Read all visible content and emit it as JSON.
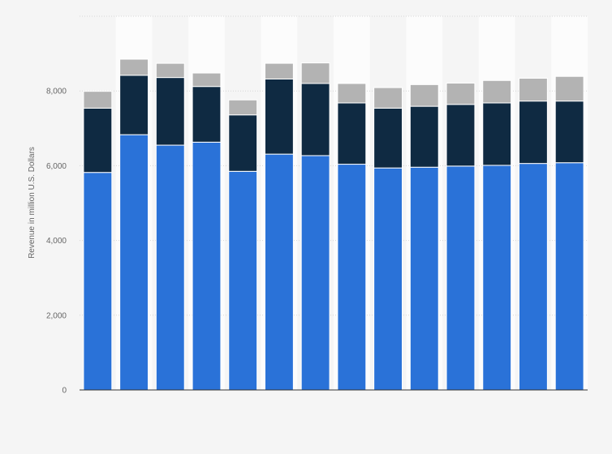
{
  "chart_data": {
    "type": "bar",
    "stacked": true,
    "title": "",
    "xlabel": "",
    "ylabel": "Revenue in million U.S. Dollars",
    "ylim": [
      0,
      10000
    ],
    "yticks": [
      0,
      2000,
      4000,
      6000,
      8000
    ],
    "ytick_labels": [
      "0",
      "2,000",
      "4,000",
      "6,000",
      "8,000"
    ],
    "grid": true,
    "legend": "none",
    "categories": [
      "",
      "",
      "",
      "",
      "",
      "",
      "",
      "",
      "",
      "",
      "",
      "",
      "",
      ""
    ],
    "series": [
      {
        "values": [
          5820,
          6830,
          6550,
          6630,
          5850,
          6310,
          6270,
          6040,
          5940,
          5960,
          5990,
          6010,
          6060,
          6080
        ],
        "color": "#2a72d8"
      },
      {
        "values": [
          1720,
          1590,
          1810,
          1490,
          1510,
          2010,
          1930,
          1640,
          1600,
          1630,
          1650,
          1670,
          1670,
          1650
        ],
        "color": "#0f2a42"
      },
      {
        "values": [
          450,
          430,
          380,
          360,
          400,
          420,
          550,
          520,
          550,
          580,
          570,
          600,
          610,
          660
        ],
        "color": "#b3b3b3"
      }
    ]
  }
}
